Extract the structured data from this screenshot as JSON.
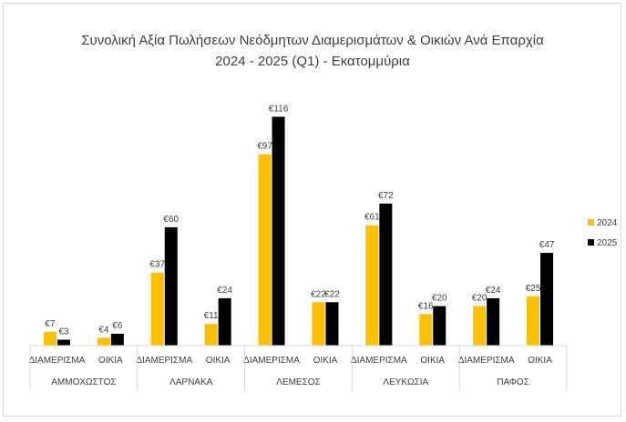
{
  "chart_data": {
    "type": "bar",
    "title": "Συνολική Αξία Πωλήσεων Νεόδμητων Διαμερισμάτων & Οικιών Ανά Επαρχία",
    "subtitle": "2024 - 2025 (Q1) - Εκατομμύρια",
    "ylim": [
      0,
      130
    ],
    "grid": false,
    "legend_position": "right",
    "value_prefix": "€",
    "groups": [
      {
        "name": "ΑΜΜΟΧΩΣΤΟΣ",
        "categories": [
          "ΔΙΑΜΕΡΙΣΜΑ",
          "ΟΙΚΙΑ"
        ]
      },
      {
        "name": "ΛΑΡΝΑΚΑ",
        "categories": [
          "ΔΙΑΜΕΡΙΣΜΑ",
          "ΟΙΚΙΑ"
        ]
      },
      {
        "name": "ΛΕΜΕΣΟΣ",
        "categories": [
          "ΔΙΑΜΕΡΙΣΜΑ",
          "ΟΙΚΙΑ"
        ]
      },
      {
        "name": "ΛΕΥΚΩΣΙΑ",
        "categories": [
          "ΔΙΑΜΕΡΙΣΜΑ",
          "ΟΙΚΙΑ"
        ]
      },
      {
        "name": "ΠΑΦΟΣ",
        "categories": [
          "ΔΙΑΜΕΡΙΣΜΑ",
          "ΟΙΚΙΑ"
        ]
      }
    ],
    "series": [
      {
        "name": "2024",
        "color": "#FFC000",
        "values": [
          7,
          4,
          37,
          11,
          97,
          22,
          61,
          16,
          20,
          25
        ]
      },
      {
        "name": "2025",
        "color": "#000000",
        "values": [
          3,
          6,
          60,
          24,
          116,
          22,
          72,
          20,
          24,
          47
        ]
      }
    ]
  }
}
